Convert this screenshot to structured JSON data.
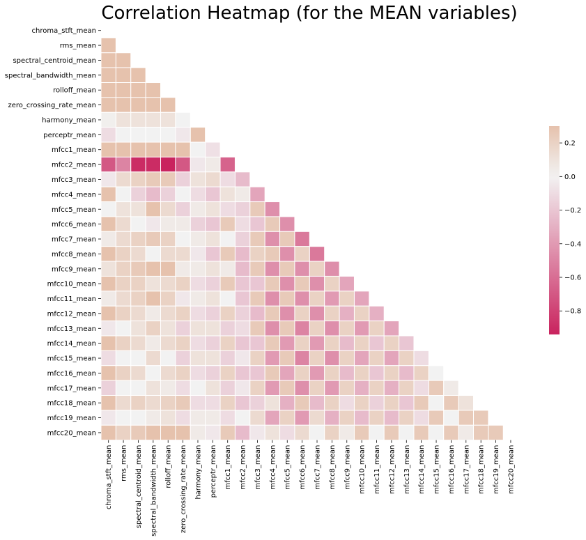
{
  "chart_data": {
    "type": "heatmap",
    "title": "Correlation Heatmap (for the MEAN variables)",
    "labels": [
      "chroma_stft_mean",
      "rms_mean",
      "spectral_centroid_mean",
      "spectral_bandwidth_mean",
      "rolloff_mean",
      "zero_crossing_rate_mean",
      "harmony_mean",
      "perceptr_mean",
      "mfcc1_mean",
      "mfcc2_mean",
      "mfcc3_mean",
      "mfcc4_mean",
      "mfcc5_mean",
      "mfcc6_mean",
      "mfcc7_mean",
      "mfcc8_mean",
      "mfcc9_mean",
      "mfcc10_mean",
      "mfcc11_mean",
      "mfcc12_mean",
      "mfcc13_mean",
      "mfcc14_mean",
      "mfcc15_mean",
      "mfcc16_mean",
      "mfcc17_mean",
      "mfcc18_mean",
      "mfcc19_mean",
      "mfcc20_mean"
    ],
    "mask": "upper triangle (incl. diagonal)",
    "vmin": -0.94,
    "vmax": 0.3,
    "colorbar_ticks": [
      0.2,
      0.0,
      -0.2,
      -0.4,
      -0.6,
      -0.8
    ],
    "colorbar_tick_labels": [
      "0.2",
      "0.0",
      "−0.2",
      "−0.4",
      "−0.6",
      "−0.8"
    ],
    "colormap": {
      "neg": "#c9235e",
      "mid": "#f2f2f2",
      "pos": "#e6c2ad"
    },
    "matrix_lower": [
      [],
      [
        0.3
      ],
      [
        0.3,
        0.3
      ],
      [
        0.3,
        0.3,
        0.3
      ],
      [
        0.3,
        0.3,
        0.3,
        0.3
      ],
      [
        0.3,
        0.3,
        0.3,
        0.3,
        0.3
      ],
      [
        0.02,
        0.1,
        0.1,
        0.1,
        0.1,
        0.0
      ],
      [
        -0.1,
        0.0,
        0.0,
        0.0,
        0.0,
        -0.05,
        0.3
      ],
      [
        0.3,
        0.3,
        0.3,
        0.3,
        0.3,
        0.3,
        0.0,
        -0.08
      ],
      [
        -0.7,
        -0.5,
        -0.9,
        -0.9,
        -0.94,
        -0.7,
        -0.05,
        0.05,
        -0.65
      ],
      [
        -0.05,
        0.15,
        0.2,
        0.25,
        0.25,
        -0.15,
        0.1,
        0.15,
        -0.1,
        -0.25
      ],
      [
        0.3,
        0.0,
        -0.15,
        -0.25,
        -0.15,
        0.0,
        -0.1,
        -0.2,
        0.1,
        0.05,
        -0.35
      ],
      [
        0.0,
        0.1,
        0.1,
        0.3,
        0.15,
        -0.15,
        0.05,
        0.1,
        -0.1,
        -0.15,
        0.25,
        -0.45
      ],
      [
        0.3,
        0.15,
        0.0,
        -0.05,
        0.05,
        0.05,
        -0.15,
        -0.2,
        0.25,
        -0.1,
        -0.2,
        0.25,
        -0.45
      ],
      [
        0.05,
        0.15,
        0.2,
        0.25,
        0.2,
        0.0,
        0.05,
        0.1,
        0.0,
        -0.15,
        0.25,
        -0.45,
        0.25,
        -0.55
      ],
      [
        0.3,
        0.2,
        0.15,
        0.0,
        0.15,
        0.15,
        -0.05,
        -0.2,
        0.25,
        -0.25,
        0.2,
        0.25,
        -0.45,
        0.2,
        -0.55
      ],
      [
        0.1,
        0.2,
        0.25,
        0.3,
        0.3,
        0.05,
        0.05,
        0.1,
        0.05,
        -0.25,
        0.25,
        -0.45,
        0.25,
        -0.45,
        0.2,
        -0.45
      ],
      [
        0.3,
        0.2,
        0.2,
        0.1,
        0.15,
        0.2,
        -0.1,
        -0.15,
        0.25,
        -0.2,
        -0.2,
        0.25,
        -0.45,
        0.25,
        -0.45,
        0.2,
        -0.35
      ],
      [
        0.05,
        0.15,
        0.2,
        0.3,
        0.2,
        -0.05,
        0.05,
        0.1,
        0.0,
        -0.2,
        0.25,
        -0.45,
        0.25,
        -0.45,
        0.2,
        -0.4,
        0.2,
        -0.35
      ],
      [
        0.3,
        0.2,
        0.15,
        0.05,
        0.15,
        0.2,
        -0.1,
        -0.15,
        0.2,
        -0.15,
        -0.25,
        0.25,
        -0.45,
        0.2,
        -0.45,
        0.2,
        -0.3,
        0.2,
        -0.3
      ],
      [
        -0.05,
        0.0,
        0.1,
        0.2,
        0.1,
        -0.15,
        0.1,
        0.1,
        -0.15,
        -0.1,
        0.25,
        -0.45,
        0.25,
        -0.5,
        0.2,
        -0.45,
        0.2,
        -0.4,
        0.2,
        -0.35
      ],
      [
        0.3,
        0.2,
        0.15,
        0.05,
        0.15,
        0.2,
        -0.1,
        -0.15,
        0.2,
        -0.2,
        -0.2,
        0.25,
        -0.4,
        0.2,
        -0.4,
        0.2,
        -0.25,
        0.2,
        -0.2,
        0.2,
        -0.2
      ],
      [
        -0.1,
        0.0,
        0.0,
        0.15,
        0.0,
        -0.15,
        0.1,
        0.1,
        -0.15,
        -0.05,
        0.2,
        -0.4,
        0.25,
        -0.5,
        0.2,
        -0.45,
        0.2,
        -0.35,
        0.2,
        -0.35,
        0.2,
        -0.1
      ],
      [
        0.3,
        0.2,
        0.15,
        0.0,
        0.15,
        0.2,
        -0.1,
        -0.15,
        0.2,
        -0.2,
        -0.2,
        0.25,
        -0.35,
        0.2,
        -0.4,
        0.2,
        -0.25,
        0.2,
        -0.2,
        0.2,
        -0.25,
        0.2,
        0.0
      ],
      [
        -0.15,
        0.0,
        0.0,
        0.1,
        0.05,
        -0.1,
        0.0,
        0.1,
        -0.15,
        -0.05,
        0.2,
        -0.4,
        0.25,
        -0.45,
        0.2,
        -0.4,
        0.2,
        -0.3,
        0.2,
        -0.3,
        0.2,
        -0.1,
        0.25,
        0.05
      ],
      [
        0.3,
        0.15,
        0.2,
        0.15,
        0.2,
        0.25,
        -0.1,
        -0.1,
        0.2,
        -0.2,
        -0.15,
        0.1,
        -0.3,
        0.25,
        -0.25,
        0.2,
        -0.1,
        0.2,
        -0.15,
        0.2,
        -0.2,
        0.25,
        0.0,
        0.25,
        0.1
      ],
      [
        -0.05,
        0.0,
        0.0,
        0.05,
        0.1,
        -0.1,
        0.05,
        0.05,
        -0.1,
        0.0,
        0.15,
        -0.35,
        0.2,
        -0.4,
        0.15,
        -0.3,
        0.2,
        -0.25,
        0.2,
        -0.25,
        0.2,
        -0.1,
        0.25,
        0.0,
        0.25,
        0.25
      ],
      [
        0.3,
        0.2,
        0.25,
        0.3,
        0.3,
        0.3,
        0.05,
        -0.05,
        0.25,
        -0.25,
        -0.05,
        0.1,
        -0.1,
        0.15,
        0.0,
        0.2,
        0.05,
        0.25,
        0.0,
        0.25,
        0.0,
        0.25,
        0.0,
        0.25,
        0.05,
        0.25,
        0.25
      ]
    ]
  }
}
